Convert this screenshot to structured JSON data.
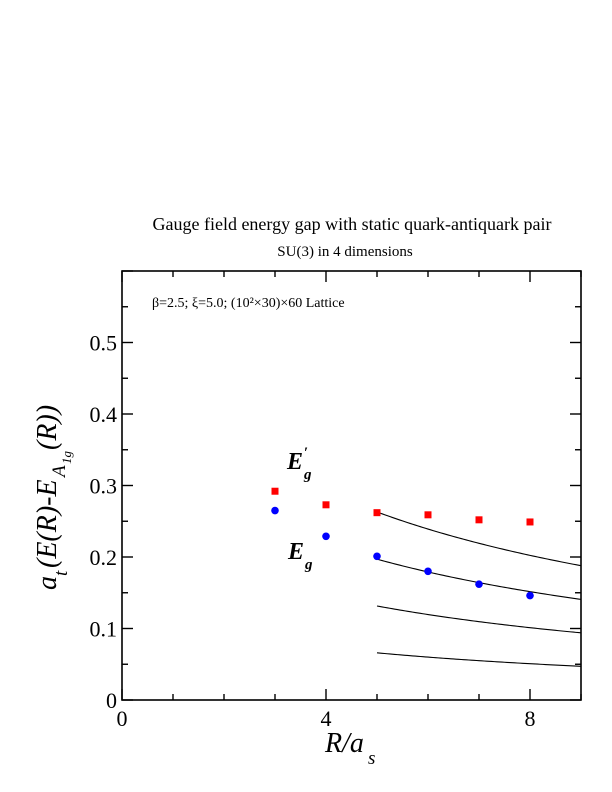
{
  "chart_data": {
    "type": "scatter",
    "title": "Gauge field energy gap with static quark-antiquark pair",
    "subtitle": "SU(3) in 4 dimensions",
    "annotation": "β=2.5; ξ=5.0; (10²×30)×60 Lattice",
    "xlabel": "R/a_s",
    "ylabel": "a_t(E(R)-E_A1g(R))",
    "xlim": [
      0,
      9
    ],
    "ylim": [
      0,
      0.6
    ],
    "x_ticks": [
      0,
      4,
      8
    ],
    "y_ticks": [
      0,
      0.1,
      0.2,
      0.3,
      0.4,
      0.5
    ],
    "x_tick_labels": [
      "0",
      "4",
      "8"
    ],
    "y_tick_labels": [
      "0",
      "0.1",
      "0.2",
      "0.3",
      "0.4",
      "0.5"
    ],
    "grid": false,
    "legend": "inline labels",
    "series": [
      {
        "name": "E′g",
        "color": "#ff0000",
        "marker": "square",
        "x": [
          3,
          4,
          5,
          6,
          7,
          8
        ],
        "y": [
          0.292,
          0.273,
          0.262,
          0.259,
          0.252,
          0.249
        ]
      },
      {
        "name": "Eg",
        "color": "#0000ff",
        "marker": "circle",
        "x": [
          3,
          4,
          5,
          6,
          7,
          8
        ],
        "y": [
          0.265,
          0.229,
          0.201,
          0.18,
          0.162,
          0.146
        ]
      }
    ],
    "curves": [
      {
        "k": 0.66,
        "color": "#000000"
      },
      {
        "k": 1.97,
        "color": "#000000"
      },
      {
        "k": 1.315,
        "color": "#000000"
      },
      {
        "k": 2.63,
        "color": "#000000"
      }
    ],
    "curve_form": "y = k / (x + 5)",
    "curve_x_start": 5,
    "curve_x_end": 9
  }
}
